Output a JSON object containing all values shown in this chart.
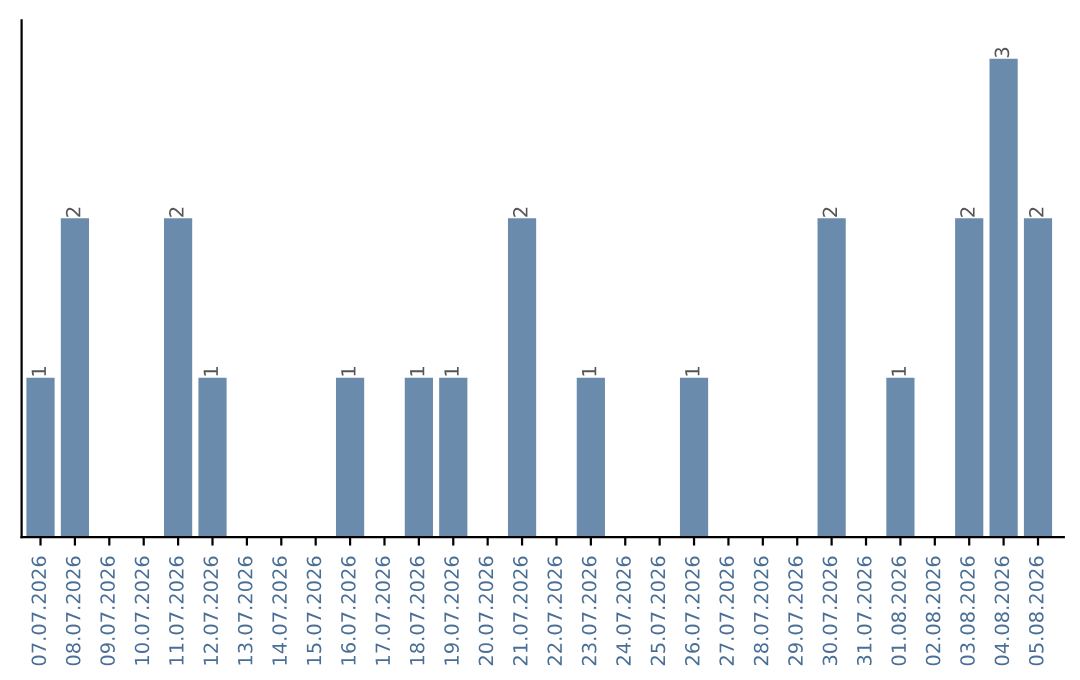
{
  "chart_data": {
    "type": "bar",
    "color": "#6a8bab",
    "categories": [
      "07.07.2026",
      "08.07.2026",
      "09.07.2026",
      "10.07.2026",
      "11.07.2026",
      "12.07.2026",
      "13.07.2026",
      "14.07.2026",
      "15.07.2026",
      "16.07.2026",
      "17.07.2026",
      "18.07.2026",
      "19.07.2026",
      "20.07.2026",
      "21.07.2026",
      "22.07.2026",
      "23.07.2026",
      "24.07.2026",
      "25.07.2026",
      "26.07.2026",
      "27.07.2026",
      "28.07.2026",
      "29.07.2026",
      "30.07.2026",
      "31.07.2026",
      "01.08.2026",
      "02.08.2026",
      "03.08.2026",
      "04.08.2026",
      "05.08.2026"
    ],
    "values": [
      1,
      2,
      0,
      0,
      2,
      1,
      0,
      0,
      0,
      1,
      0,
      1,
      1,
      0,
      2,
      0,
      1,
      0,
      0,
      1,
      0,
      0,
      0,
      2,
      0,
      1,
      0,
      2,
      3,
      2
    ],
    "value_labels": [
      "1",
      "2",
      null,
      null,
      "2",
      "1",
      null,
      null,
      null,
      "1",
      null,
      "1",
      "1",
      null,
      "2",
      null,
      "1",
      null,
      null,
      "1",
      null,
      null,
      null,
      "2",
      null,
      "1",
      null,
      "2",
      "3",
      "2"
    ],
    "grid": false,
    "legend": false
  }
}
